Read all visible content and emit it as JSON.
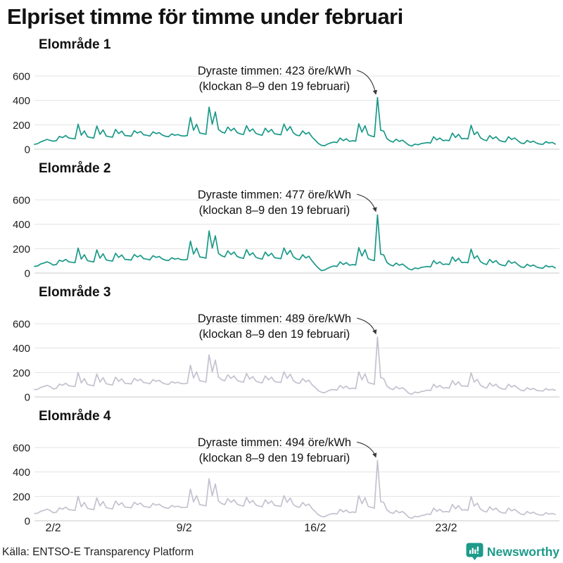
{
  "page_title": "Elpriset timme för timme under februari",
  "source": "Källa: ENTSO-E Transparency Platform",
  "branding": {
    "label": "Newsworthy",
    "color": "#1d9a8a",
    "icon": "newsworthy-logo-icon"
  },
  "axes": {
    "ylim": [
      0,
      600
    ],
    "y_ticks": [
      600,
      400,
      200,
      0
    ],
    "x_ticks": [
      {
        "label": "2/2",
        "day": 1
      },
      {
        "label": "9/2",
        "day": 8
      },
      {
        "label": "16/2",
        "day": 15
      },
      {
        "label": "23/2",
        "day": 22
      }
    ],
    "x_range_days": 28,
    "grid": true
  },
  "chart_data": [
    {
      "type": "line",
      "title": "Elområde 1",
      "ylabel": "öre/kWh",
      "color": "#1a9988",
      "peak_value": 423,
      "peak_time_day": 19,
      "peak_time_hour": 8,
      "annotation_line1": "Dyraste timmen: 423 öre/kWh",
      "annotation_line2": "(klockan 8–9 den 19 februari)",
      "x_step_hours": 4,
      "x_start": "1 februari 00:00",
      "values": [
        40,
        45,
        60,
        70,
        80,
        72,
        66,
        70,
        105,
        95,
        112,
        92,
        88,
        85,
        205,
        115,
        150,
        102,
        96,
        92,
        190,
        122,
        158,
        108,
        102,
        98,
        162,
        128,
        148,
        112,
        110,
        106,
        152,
        132,
        145,
        118,
        114,
        108,
        142,
        128,
        136,
        116,
        106,
        102,
        126,
        114,
        120,
        110,
        108,
        112,
        262,
        155,
        205,
        132,
        128,
        122,
        345,
        205,
        305,
        162,
        142,
        132,
        182,
        152,
        172,
        136,
        126,
        120,
        192,
        146,
        166,
        130,
        120,
        114,
        172,
        140,
        162,
        126,
        122,
        118,
        206,
        152,
        186,
        134,
        116,
        110,
        150,
        124,
        138,
        100,
        75,
        48,
        32,
        28,
        42,
        52,
        58,
        54,
        92,
        70,
        86,
        64,
        70,
        66,
        208,
        140,
        192,
        118,
        108,
        102,
        423,
        155,
        148,
        88,
        68,
        58,
        82,
        64,
        74,
        54,
        34,
        26,
        42,
        36,
        46,
        50,
        54,
        50,
        102,
        76,
        92,
        70,
        74,
        70,
        132,
        96,
        122,
        86,
        88,
        84,
        196,
        120,
        142,
        94,
        78,
        70,
        112,
        86,
        102,
        74,
        64,
        60,
        102,
        80,
        92,
        70,
        50,
        46,
        72,
        56,
        66,
        50,
        42,
        40,
        62,
        50,
        56,
        42
      ]
    },
    {
      "type": "line",
      "title": "Elområde 2",
      "ylabel": "öre/kWh",
      "color": "#1a9988",
      "peak_value": 477,
      "peak_time_day": 19,
      "peak_time_hour": 8,
      "annotation_line1": "Dyraste timmen: 477 öre/kWh",
      "annotation_line2": "(klockan 8–9 den 19 februari)",
      "x_step_hours": 4,
      "x_start": "1 februari 00:00",
      "values": [
        55,
        58,
        75,
        82,
        92,
        82,
        66,
        70,
        105,
        95,
        112,
        92,
        88,
        85,
        205,
        115,
        150,
        102,
        96,
        92,
        190,
        122,
        158,
        108,
        102,
        98,
        162,
        128,
        148,
        112,
        110,
        106,
        152,
        132,
        145,
        118,
        114,
        108,
        142,
        128,
        136,
        116,
        106,
        102,
        126,
        114,
        120,
        110,
        108,
        112,
        262,
        155,
        205,
        132,
        128,
        122,
        345,
        205,
        305,
        162,
        142,
        132,
        182,
        152,
        172,
        136,
        126,
        120,
        192,
        146,
        166,
        130,
        120,
        114,
        172,
        140,
        162,
        126,
        122,
        118,
        206,
        152,
        186,
        134,
        116,
        110,
        150,
        124,
        138,
        100,
        70,
        42,
        20,
        24,
        38,
        50,
        58,
        54,
        92,
        70,
        86,
        64,
        70,
        66,
        208,
        140,
        192,
        118,
        108,
        102,
        477,
        155,
        148,
        88,
        68,
        58,
        82,
        64,
        74,
        54,
        34,
        26,
        42,
        36,
        46,
        50,
        54,
        50,
        102,
        76,
        92,
        70,
        74,
        70,
        132,
        96,
        122,
        86,
        88,
        84,
        196,
        120,
        142,
        94,
        78,
        70,
        112,
        86,
        102,
        74,
        64,
        60,
        102,
        80,
        92,
        70,
        50,
        46,
        72,
        56,
        66,
        50,
        42,
        40,
        62,
        50,
        56,
        42
      ]
    },
    {
      "type": "line",
      "title": "Elområde 3",
      "ylabel": "öre/kWh",
      "color": "#c3c2cf",
      "peak_value": 489,
      "peak_time_day": 19,
      "peak_time_hour": 8,
      "annotation_line1": "Dyraste timmen: 489 öre/kWh",
      "annotation_line2": "(klockan 8–9 den 19 februari)",
      "x_step_hours": 4,
      "x_start": "1 februari 00:00",
      "values": [
        60,
        62,
        78,
        85,
        95,
        85,
        66,
        70,
        105,
        95,
        112,
        92,
        88,
        85,
        200,
        115,
        150,
        102,
        96,
        92,
        188,
        122,
        158,
        108,
        102,
        98,
        162,
        128,
        148,
        112,
        110,
        106,
        152,
        132,
        145,
        118,
        114,
        108,
        142,
        128,
        136,
        116,
        106,
        102,
        126,
        114,
        120,
        110,
        108,
        112,
        260,
        155,
        205,
        132,
        128,
        122,
        345,
        205,
        302,
        162,
        142,
        132,
        182,
        152,
        172,
        136,
        126,
        120,
        192,
        146,
        166,
        130,
        120,
        114,
        172,
        140,
        162,
        126,
        122,
        118,
        206,
        152,
        186,
        134,
        116,
        110,
        150,
        124,
        138,
        100,
        78,
        52,
        38,
        34,
        48,
        58,
        60,
        56,
        94,
        72,
        88,
        66,
        72,
        68,
        206,
        140,
        190,
        118,
        110,
        104,
        489,
        158,
        150,
        90,
        70,
        60,
        84,
        66,
        76,
        56,
        30,
        22,
        40,
        34,
        44,
        48,
        56,
        52,
        104,
        78,
        94,
        72,
        76,
        72,
        134,
        98,
        124,
        88,
        90,
        86,
        198,
        122,
        144,
        96,
        80,
        72,
        114,
        88,
        104,
        76,
        66,
        62,
        104,
        82,
        94,
        72,
        54,
        50,
        76,
        60,
        70,
        54,
        50,
        48,
        68,
        56,
        62,
        55
      ]
    },
    {
      "type": "line",
      "title": "Elområde 4",
      "ylabel": "öre/kWh",
      "color": "#c3c2cf",
      "peak_value": 494,
      "peak_time_day": 19,
      "peak_time_hour": 8,
      "annotation_line1": "Dyraste timmen: 494 öre/kWh",
      "annotation_line2": "(klockan 8–9 den 19 februari)",
      "x_step_hours": 4,
      "x_start": "1 februari 00:00",
      "values": [
        60,
        62,
        78,
        85,
        95,
        85,
        66,
        70,
        105,
        95,
        112,
        92,
        88,
        85,
        200,
        115,
        150,
        102,
        96,
        92,
        188,
        122,
        158,
        108,
        102,
        98,
        162,
        128,
        148,
        112,
        110,
        106,
        152,
        132,
        145,
        118,
        114,
        108,
        142,
        128,
        136,
        116,
        106,
        102,
        126,
        114,
        120,
        110,
        108,
        112,
        260,
        155,
        205,
        132,
        128,
        122,
        345,
        205,
        302,
        162,
        142,
        132,
        182,
        152,
        172,
        136,
        126,
        120,
        192,
        146,
        166,
        130,
        120,
        114,
        172,
        140,
        162,
        126,
        122,
        118,
        206,
        152,
        186,
        134,
        116,
        110,
        150,
        124,
        138,
        100,
        76,
        50,
        36,
        32,
        46,
        56,
        60,
        56,
        94,
        72,
        88,
        66,
        72,
        68,
        206,
        140,
        190,
        118,
        110,
        104,
        494,
        158,
        150,
        90,
        70,
        60,
        84,
        66,
        76,
        56,
        28,
        20,
        38,
        32,
        42,
        46,
        56,
        52,
        104,
        78,
        94,
        72,
        76,
        72,
        134,
        98,
        124,
        88,
        90,
        86,
        198,
        122,
        144,
        96,
        80,
        72,
        114,
        88,
        104,
        76,
        66,
        62,
        104,
        82,
        94,
        72,
        54,
        50,
        76,
        60,
        70,
        54,
        48,
        46,
        66,
        54,
        60,
        52
      ]
    }
  ]
}
